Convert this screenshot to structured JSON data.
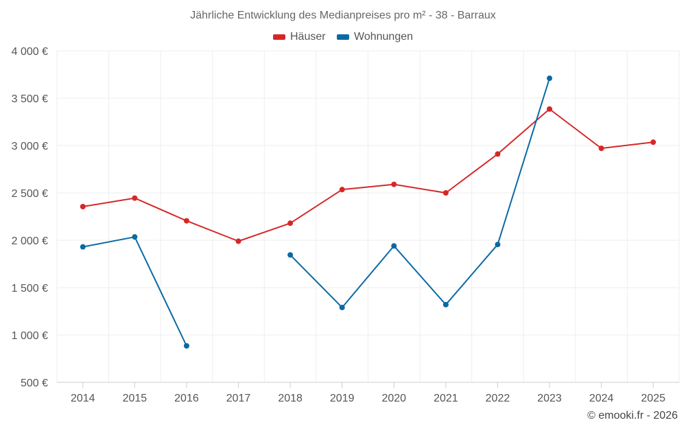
{
  "chart_data": {
    "type": "line",
    "title": "Jährliche Entwicklung des Medianpreises pro m² - 38 - Barraux",
    "categories": [
      "2014",
      "2015",
      "2016",
      "2017",
      "2018",
      "2019",
      "2020",
      "2021",
      "2022",
      "2023",
      "2024",
      "2025"
    ],
    "series": [
      {
        "name": "Häuser",
        "color": "#d62728",
        "values": [
          2355,
          2445,
          2205,
          1990,
          2180,
          2535,
          2590,
          2500,
          2910,
          3385,
          2970,
          3035
        ]
      },
      {
        "name": "Wohnungen",
        "color": "#0b69a3",
        "values": [
          1930,
          2035,
          885,
          null,
          1845,
          1290,
          1940,
          1320,
          1955,
          3710,
          null,
          null
        ]
      }
    ],
    "ylim": [
      500,
      4000
    ],
    "yticks": [
      500,
      1000,
      1500,
      2000,
      2500,
      3000,
      3500,
      4000
    ],
    "ytick_labels": [
      "500 €",
      "1 000 €",
      "1 500 €",
      "2 000 €",
      "2 500 €",
      "3 000 €",
      "3 500 €",
      "4 000 €"
    ],
    "xlabel": "",
    "ylabel": "",
    "grid": true,
    "legend_position": "top-center"
  },
  "credit": "© emooki.fr - 2026"
}
